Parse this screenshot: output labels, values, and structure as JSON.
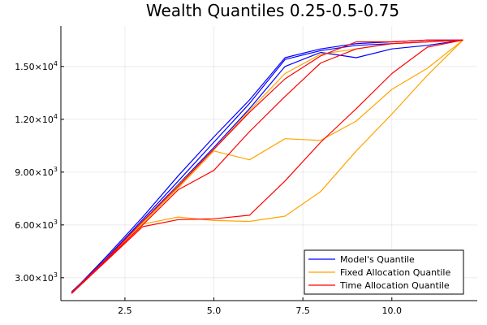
{
  "chart_data": {
    "type": "line",
    "title": "Wealth Quantiles 0.25-0.5-0.75",
    "xlabel": "",
    "ylabel": "",
    "xlim": [
      0.7,
      12.4
    ],
    "ylim": [
      1700,
      17300
    ],
    "xticks": [
      2.5,
      5.0,
      7.5,
      10.0
    ],
    "xtick_labels": [
      "2.5",
      "5.0",
      "7.5",
      "10.0"
    ],
    "yticks": [
      3000,
      6000,
      9000,
      12000,
      15000
    ],
    "ytick_labels": [
      {
        "mant": "3.00",
        "exp": "3"
      },
      {
        "mant": "6.00",
        "exp": "3"
      },
      {
        "mant": "9.00",
        "exp": "3"
      },
      {
        "mant": "1.20",
        "exp": "4"
      },
      {
        "mant": "1.50",
        "exp": "4"
      }
    ],
    "grid": true,
    "legend_position": "bottom-right",
    "legend": [
      {
        "label": "Model's Quantile",
        "color": "#0000ff"
      },
      {
        "label": "Fixed Allocation Quantile",
        "color": "#ffa500"
      },
      {
        "label": "Time Allocation Quantile",
        "color": "#ff0000"
      }
    ],
    "x": [
      1,
      2,
      3,
      4,
      5,
      6,
      7,
      8,
      9,
      10,
      11,
      12
    ],
    "series": [
      {
        "group": "model",
        "color": "#0000ff",
        "values": [
          2200,
          4100,
          6200,
          8300,
          10400,
          12600,
          15000,
          15800,
          15500,
          16000,
          16200,
          16500
        ]
      },
      {
        "group": "model",
        "color": "#0000ff",
        "values": [
          2150,
          4150,
          6300,
          8500,
          10700,
          12900,
          15400,
          15900,
          16200,
          16300,
          16400,
          16500
        ]
      },
      {
        "group": "model",
        "color": "#0000ff",
        "values": [
          2150,
          4250,
          6450,
          8800,
          11000,
          13100,
          15500,
          16000,
          16300,
          16400,
          16500,
          16500
        ]
      },
      {
        "group": "fixed",
        "color": "#ffa500",
        "values": [
          2150,
          4050,
          6050,
          6450,
          6250,
          6200,
          6500,
          7900,
          10200,
          12300,
          14500,
          16500
        ]
      },
      {
        "group": "fixed",
        "color": "#ffa500",
        "values": [
          2150,
          4100,
          6100,
          8100,
          10200,
          9700,
          10900,
          10800,
          11900,
          13700,
          14900,
          16500
        ]
      },
      {
        "group": "fixed",
        "color": "#ffa500",
        "values": [
          2150,
          4100,
          6150,
          8250,
          10300,
          12500,
          14600,
          15700,
          16000,
          16300,
          16400,
          16500
        ]
      },
      {
        "group": "time",
        "color": "#ff0000",
        "values": [
          2100,
          4000,
          5900,
          6300,
          6350,
          6550,
          8500,
          10700,
          12600,
          14600,
          16100,
          16500
        ]
      },
      {
        "group": "time",
        "color": "#ff0000",
        "values": [
          2150,
          4050,
          6000,
          8000,
          9100,
          11300,
          13300,
          15200,
          16000,
          16300,
          16400,
          16500
        ]
      },
      {
        "group": "time",
        "color": "#ff0000",
        "values": [
          2150,
          4100,
          6200,
          8200,
          10300,
          12400,
          14300,
          15600,
          16400,
          16400,
          16500,
          16500
        ]
      }
    ]
  }
}
